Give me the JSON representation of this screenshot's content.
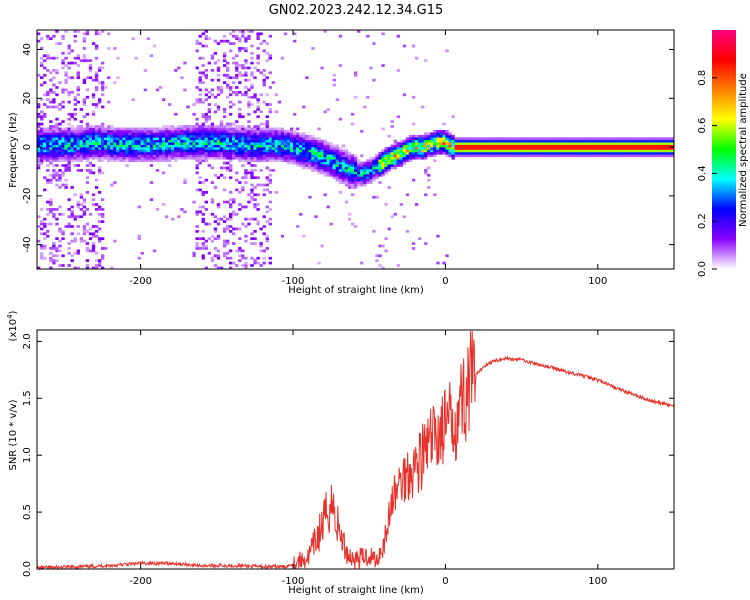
{
  "title": "GN02.2023.242.12.34.G15",
  "chart_data": [
    {
      "type": "heatmap",
      "xlabel": "Height of straight line (km)",
      "ylabel": "Frequency (Hz)",
      "xlim": [
        -268,
        150
      ],
      "ylim": [
        -50,
        48
      ],
      "xticks": [
        -200,
        -100,
        0,
        100
      ],
      "yticks": [
        -40,
        -20,
        0,
        20,
        40
      ],
      "colorbar": {
        "label": "Normalized spectral amplitude",
        "range": [
          0.0,
          1.0
        ],
        "ticks": [
          "0.0",
          "0.2",
          "0.4",
          "0.6",
          "0.8"
        ],
        "tick_values": [
          0.0,
          0.2,
          0.4,
          0.6,
          0.8
        ],
        "colors": [
          "#ffffff",
          "#8a00ff",
          "#0000ff",
          "#00ffff",
          "#00ff00",
          "#ffff00",
          "#ff8000",
          "#ff0000",
          "#ff0080"
        ]
      },
      "ridge": {
        "x": [
          -268,
          -250,
          -230,
          -210,
          -190,
          -170,
          -150,
          -130,
          -110,
          -100,
          -90,
          -80,
          -70,
          -60,
          -55,
          -50,
          -45,
          -40,
          -35,
          -30,
          -25,
          -20,
          -15,
          -10,
          -5,
          0,
          5,
          150
        ],
        "y": [
          1,
          1,
          2,
          1,
          1,
          2,
          2,
          1,
          1,
          0,
          -2,
          -4,
          -7,
          -10,
          -11,
          -10,
          -8,
          -6,
          -4,
          -3,
          -1,
          0,
          0,
          1,
          2,
          2,
          0,
          0
        ]
      },
      "noise_regions_x": [
        [
          -268,
          -225
        ],
        [
          -165,
          -115
        ]
      ]
    },
    {
      "type": "line",
      "xlabel": "Height of straight line (km)",
      "ylabel": "SNR (10 * v/v)",
      "y_multiplier": "(x10^4)",
      "xlim": [
        -268,
        150
      ],
      "ylim": [
        0,
        2.1
      ],
      "xticks": [
        -200,
        -100,
        0,
        100
      ],
      "yticks": [
        "0.0",
        "0.5",
        "1.0",
        "1.5",
        "2.0"
      ],
      "ytick_values": [
        0.0,
        0.5,
        1.0,
        1.5,
        2.0
      ],
      "color": "#e8312a",
      "series": [
        {
          "x": [
            -268,
            -240,
            -220,
            -200,
            -180,
            -160,
            -140,
            -120,
            -105,
            -90,
            -80,
            -75,
            -70,
            -65,
            -60,
            -55,
            -50,
            -45,
            -40,
            -35,
            -30,
            -25,
            -20,
            -15,
            -10,
            -5,
            0,
            5,
            10,
            15,
            20,
            25,
            30,
            40,
            50,
            60,
            70,
            80,
            90,
            100,
            110,
            120,
            130,
            140,
            150
          ],
          "y": [
            0.01,
            0.02,
            0.03,
            0.05,
            0.05,
            0.03,
            0.03,
            0.02,
            0.02,
            0.1,
            0.4,
            0.6,
            0.35,
            0.15,
            0.08,
            0.1,
            0.12,
            0.08,
            0.25,
            0.6,
            0.75,
            0.85,
            0.9,
            1.0,
            1.1,
            1.2,
            1.25,
            1.3,
            1.45,
            1.6,
            1.7,
            1.78,
            1.82,
            1.85,
            1.84,
            1.8,
            1.77,
            1.73,
            1.7,
            1.66,
            1.6,
            1.55,
            1.5,
            1.46,
            1.43
          ]
        }
      ]
    }
  ]
}
